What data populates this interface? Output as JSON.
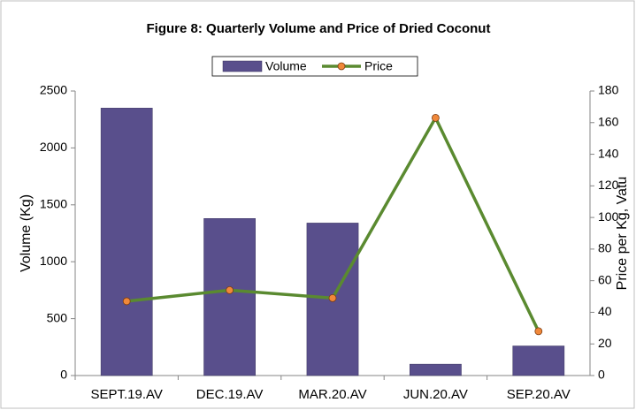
{
  "chart_data": {
    "type": "combo",
    "title": "Figure 8: Quarterly Volume and Price of Dried Coconut",
    "categories": [
      "SEPT.19.AV",
      "DEC.19.AV",
      "MAR.20.AV",
      "JUN.20.AV",
      "SEP.20.AV"
    ],
    "series": [
      {
        "name": "Volume",
        "type": "bar",
        "color": "#594f8c",
        "values": [
          2350,
          1380,
          1340,
          100,
          260
        ]
      },
      {
        "name": "Price",
        "type": "line",
        "axis": "y2",
        "color": "#5a8a30",
        "marker_color": "#f0883a",
        "values": [
          47,
          54,
          49,
          163,
          28
        ]
      }
    ],
    "ylabel": "Volume (Kg)",
    "y2label": "Price per Kg, Vatu",
    "ylim": [
      0,
      2500
    ],
    "yticks": [
      0,
      500,
      1000,
      1500,
      2000,
      2500
    ],
    "y2lim": [
      0,
      180
    ],
    "y2ticks": [
      0,
      20,
      40,
      60,
      80,
      100,
      120,
      140,
      160,
      180
    ],
    "legend": "top",
    "grid": false
  }
}
